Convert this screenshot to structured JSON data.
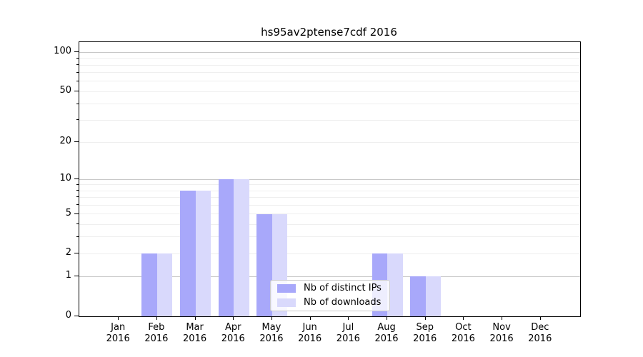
{
  "title": "hs95av2ptense7cdf 2016",
  "chart_data": {
    "type": "bar",
    "title": "hs95av2ptense7cdf 2016",
    "x_months": [
      "Jan",
      "Feb",
      "Mar",
      "Apr",
      "May",
      "Jun",
      "Jul",
      "Aug",
      "Sep",
      "Oct",
      "Nov",
      "Dec"
    ],
    "x_year": "2016",
    "series": [
      {
        "name": "Nb of distinct IPs",
        "color": "#a8a8fa",
        "values": [
          0,
          2,
          8,
          10,
          5,
          0,
          0,
          2,
          1,
          0,
          0,
          0
        ]
      },
      {
        "name": "Nb of downloads",
        "color": "#d9d9fc",
        "values": [
          0,
          2,
          8,
          10,
          5,
          0,
          0,
          2,
          1,
          0,
          0,
          0
        ]
      }
    ],
    "yscale": "log10(1+v)",
    "ylim": [
      0,
      120
    ],
    "yticks": [
      0,
      1,
      2,
      5,
      10,
      20,
      50,
      100
    ],
    "major_gridlines": [
      1,
      10,
      100
    ],
    "minor_gridlines": [
      2,
      3,
      4,
      5,
      6,
      7,
      8,
      9,
      20,
      30,
      40,
      50,
      60,
      70,
      80,
      90
    ],
    "grid": true,
    "legend_position": "lower center"
  },
  "colors": {
    "bar_distinct_ips": "#a8a8fa",
    "bar_downloads": "#d9d9fc",
    "grid_major": "#c8c8c8",
    "grid_minor": "#efefef",
    "spine": "#000000",
    "legend_border": "#cccccc"
  }
}
